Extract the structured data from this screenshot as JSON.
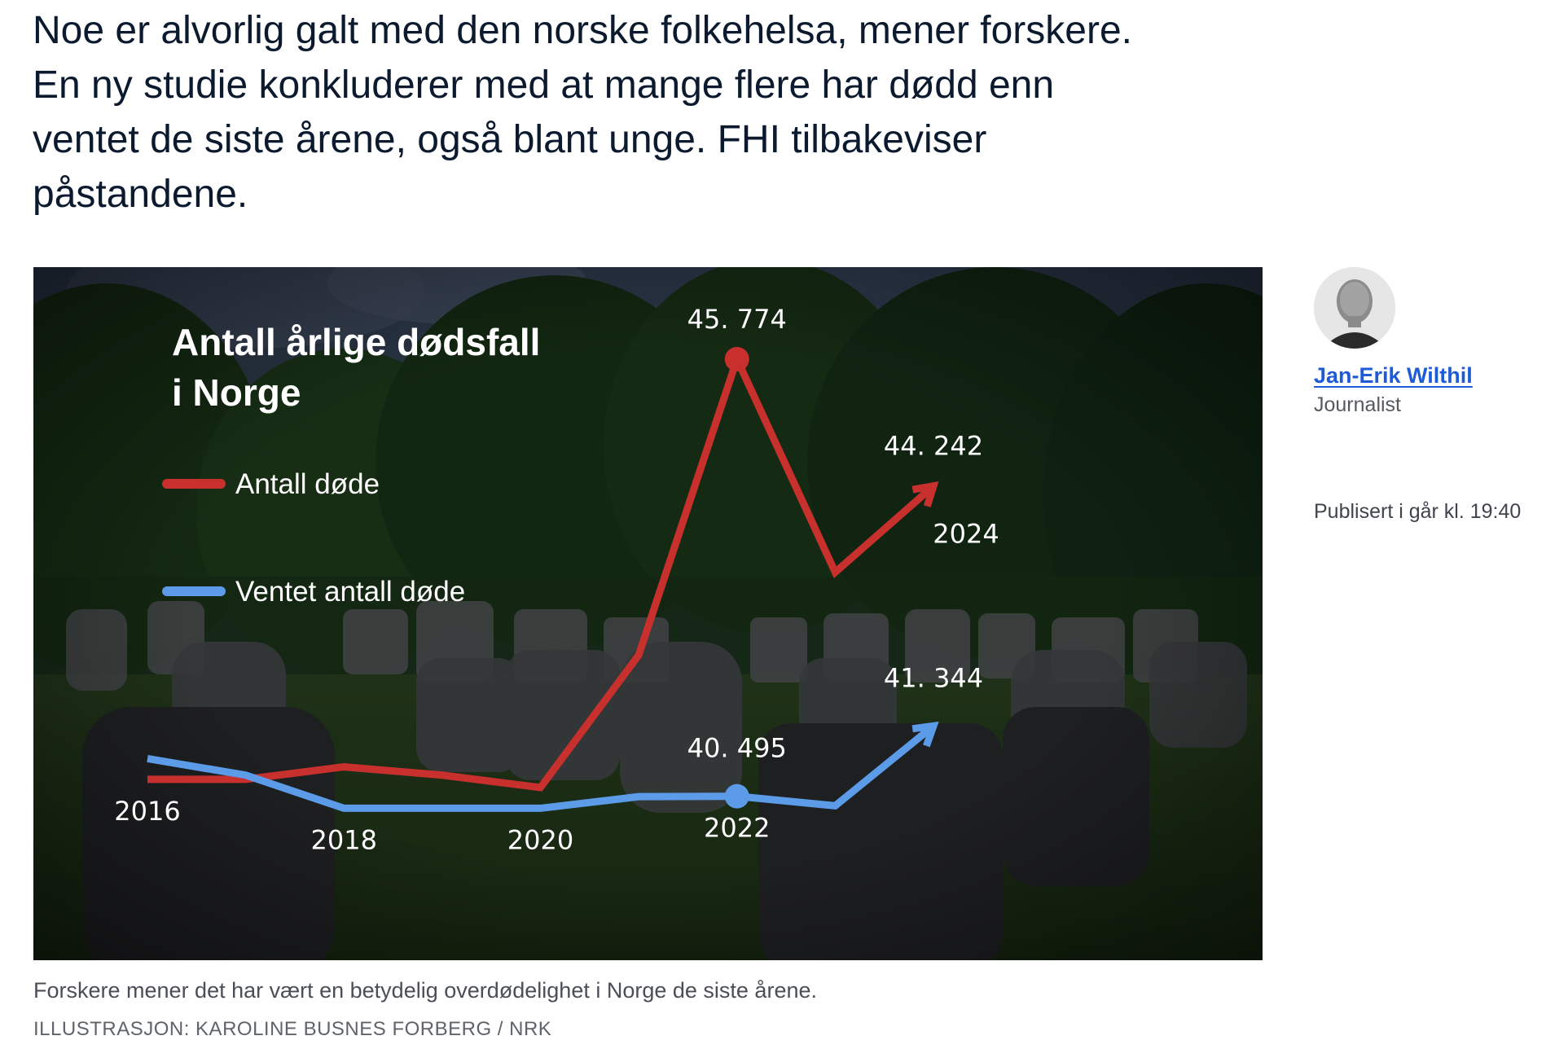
{
  "article": {
    "lead": "Noe er alvorlig galt med den norske folkehelsa, mener forskere. En ny studie konkluderer med at mange flere har dødd enn ventet de siste årene, også blant unge. FHI tilbakeviser påstandene.",
    "caption": "Forskere mener det har vært en betydelig overdødelighet i Norge de siste årene.",
    "credit": "ILLUSTRASJON: KAROLINE BUSNES FORBERG / NRK"
  },
  "author": {
    "name": "Jan-Erik Wilthil",
    "role": "Journalist",
    "published": "Publisert i går kl. 19:40"
  },
  "colors": {
    "red_series": "#c8302e",
    "blue_series": "#5b9be8",
    "link": "#1e5bd6"
  },
  "chart_data": {
    "type": "line",
    "title_line1": "Antall årlige dødsfall",
    "title_line2": "i Norge",
    "x": [
      2016,
      2017,
      2018,
      2019,
      2020,
      2021,
      2022,
      2023,
      2024
    ],
    "year_labels": [
      {
        "year": 2016,
        "text": "2016"
      },
      {
        "year": 2018,
        "text": "2018"
      },
      {
        "year": 2020,
        "text": "2020"
      },
      {
        "year": 2022,
        "text": "2022"
      },
      {
        "year": 2024,
        "text": "2024"
      }
    ],
    "series": [
      {
        "name": "Antall døde",
        "color": "#c8302e",
        "values": [
          40700,
          40700,
          40850,
          40750,
          40600,
          42200,
          45774,
          43200,
          44242
        ],
        "highlight_index": 6,
        "labels": [
          {
            "index": 6,
            "text": "45. 774"
          },
          {
            "index": 8,
            "text": "44. 242"
          }
        ],
        "arrow_end": true
      },
      {
        "name": "Ventet antall døde",
        "color": "#5b9be8",
        "values": [
          40950,
          40750,
          40350,
          40350,
          40350,
          40490,
          40495,
          40380,
          41344
        ],
        "highlight_index": 6,
        "labels": [
          {
            "index": 6,
            "text": "40. 495"
          },
          {
            "index": 8,
            "text": "41. 344"
          }
        ],
        "arrow_end": true
      }
    ]
  }
}
